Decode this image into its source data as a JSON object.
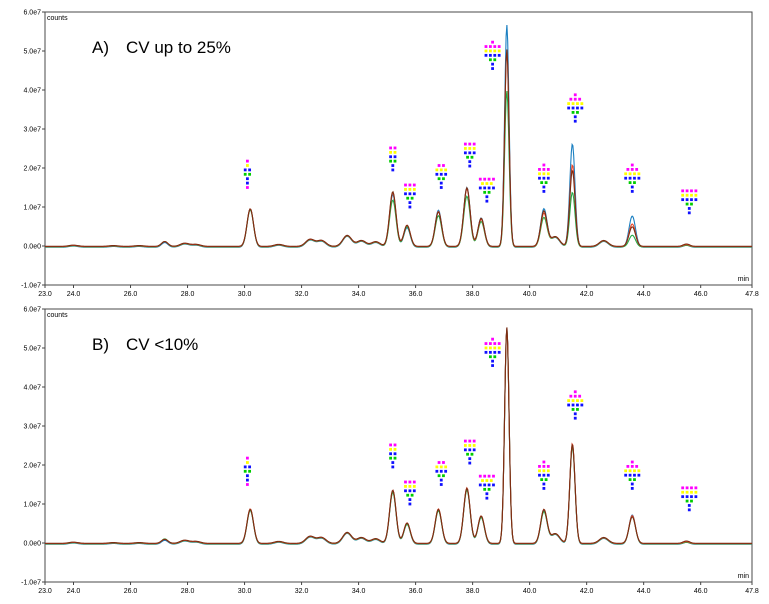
{
  "chart_data": [
    {
      "type": "line",
      "panel_label": "A)",
      "annotation": "CV up to 25%",
      "ylabel": "counts",
      "xlabel": "min",
      "xlim": [
        23.0,
        47.8
      ],
      "ylim": [
        -10000000,
        60000000
      ],
      "x_ticks": [
        "23.0",
        "24.0",
        "26.0",
        "28.0",
        "30.0",
        "32.0",
        "34.0",
        "36.0",
        "38.0",
        "40.0",
        "42.0",
        "44.0",
        "46.0",
        "47.8"
      ],
      "x_tick_values": [
        23,
        24,
        26,
        28,
        30,
        32,
        34,
        36,
        38,
        40,
        42,
        44,
        46,
        47.8
      ],
      "y_ticks": [
        "-1.0e7",
        "0.0e0",
        "1.0e7",
        "2.0e7",
        "3.0e7",
        "4.0e7",
        "5.0e7",
        "6.0e7"
      ],
      "y_tick_values": [
        -10000000,
        0,
        10000000,
        20000000,
        30000000,
        40000000,
        50000000,
        60000000
      ],
      "peak_x": [
        27.2,
        30.2,
        35.2,
        35.7,
        36.8,
        37.8,
        38.3,
        39.2,
        40.5,
        41.5,
        43.6,
        45.5
      ],
      "baseline_x": [
        24.0,
        25.4,
        26.3,
        27.9,
        28.3,
        31.2,
        32.3,
        32.7,
        33.6,
        34.1,
        34.6,
        40.9,
        42.6
      ],
      "baseline_y": [
        300000,
        200000,
        200000,
        800000,
        500000,
        500000,
        1800000,
        1500000,
        2800000,
        1500000,
        1200000,
        2500000,
        1500000
      ],
      "series": [
        {
          "color": "#1a7fc1",
          "peak_y": [
            1200000,
            9800000,
            13500000,
            5000000,
            9500000,
            15300000,
            7500000,
            57000000,
            9800000,
            26500000,
            8000000,
            500000
          ]
        },
        {
          "color": "#22a845",
          "peak_y": [
            1400000,
            9500000,
            12000000,
            5200000,
            8000000,
            13000000,
            6500000,
            40000000,
            7500000,
            14000000,
            3000000,
            400000
          ]
        },
        {
          "color": "#e8472a",
          "peak_y": [
            1300000,
            9700000,
            13800000,
            5500000,
            9000000,
            14800000,
            7000000,
            50000000,
            8500000,
            21000000,
            5800000,
            500000
          ]
        },
        {
          "color": "#7b2d12",
          "peak_y": [
            1200000,
            9600000,
            14000000,
            5400000,
            8800000,
            15000000,
            7200000,
            50500000,
            9000000,
            19500000,
            5000000,
            600000
          ]
        }
      ]
    },
    {
      "type": "line",
      "panel_label": "B)",
      "annotation": "CV <10%",
      "ylabel": "counts",
      "xlabel": "min",
      "xlim": [
        23.0,
        47.8
      ],
      "ylim": [
        -10000000,
        60000000
      ],
      "x_ticks": [
        "23.0",
        "24.0",
        "26.0",
        "28.0",
        "30.0",
        "32.0",
        "34.0",
        "36.0",
        "38.0",
        "40.0",
        "42.0",
        "44.0",
        "46.0",
        "47.8"
      ],
      "x_tick_values": [
        23,
        24,
        26,
        28,
        30,
        32,
        34,
        36,
        38,
        40,
        42,
        44,
        46,
        47.8
      ],
      "y_ticks": [
        "-1.0e7",
        "0.0e0",
        "1.0e7",
        "2.0e7",
        "3.0e7",
        "4.0e7",
        "5.0e7",
        "6.0e7"
      ],
      "y_tick_values": [
        -10000000,
        0,
        10000000,
        20000000,
        30000000,
        40000000,
        50000000,
        60000000
      ],
      "peak_x": [
        27.2,
        30.2,
        35.2,
        35.7,
        36.8,
        37.8,
        38.3,
        39.2,
        40.5,
        41.5,
        43.6,
        45.5
      ],
      "baseline_x": [
        24.0,
        25.4,
        26.3,
        27.9,
        28.3,
        31.2,
        32.3,
        32.7,
        33.6,
        34.1,
        34.6,
        40.9,
        42.6
      ],
      "baseline_y": [
        300000,
        200000,
        200000,
        800000,
        500000,
        500000,
        1800000,
        1500000,
        2800000,
        1500000,
        1200000,
        2500000,
        1500000
      ],
      "series": [
        {
          "color": "#1a7fc1",
          "peak_y": [
            1000000,
            8800000,
            13500000,
            5200000,
            8800000,
            14200000,
            7000000,
            55500000,
            8500000,
            25500000,
            7500000,
            500000
          ]
        },
        {
          "color": "#22a845",
          "peak_y": [
            1300000,
            8600000,
            13200000,
            5000000,
            8500000,
            13800000,
            6800000,
            55000000,
            8200000,
            25000000,
            7000000,
            400000
          ]
        },
        {
          "color": "#e8472a",
          "peak_y": [
            1100000,
            8900000,
            13700000,
            5300000,
            8900000,
            14300000,
            7100000,
            55200000,
            8700000,
            25700000,
            7200000,
            500000
          ]
        },
        {
          "color": "#7b2d12",
          "peak_y": [
            1000000,
            8700000,
            13600000,
            5200000,
            8700000,
            14100000,
            7000000,
            55400000,
            8600000,
            25400000,
            6800000,
            600000
          ]
        }
      ]
    }
  ],
  "glycan_icons": [
    {
      "x": 30.1,
      "y": 15000000,
      "rows": [
        [
          "#ff00ff"
        ],
        [
          "#ffff00"
        ],
        [
          "#1010ff",
          "#1010ff"
        ],
        [
          "#00cc00",
          "#00cc00"
        ],
        [
          "#1010ff"
        ],
        [
          "#1010ff"
        ],
        [
          "#ff00ff"
        ]
      ]
    },
    {
      "x": 35.2,
      "y": 19500000,
      "rows": [
        [
          "#ff00ff",
          "#ff00ff"
        ],
        [
          "#ffff00",
          "#ffff00"
        ],
        [
          "#1010ff",
          "#1010ff"
        ],
        [
          "#00cc00",
          "#00cc00"
        ],
        [
          "#1010ff"
        ],
        [
          "#1010ff"
        ]
      ]
    },
    {
      "x": 35.8,
      "y": 10000000,
      "rows": [
        [
          "#ff00ff",
          "#ff00ff",
          "#ff00ff"
        ],
        [
          "#ffff00",
          "#ffff00",
          "#ffff00"
        ],
        [
          "#1010ff",
          "#1010ff",
          "#1010ff"
        ],
        [
          "#00cc00",
          "#00cc00"
        ],
        [
          "#1010ff"
        ],
        [
          "#1010ff"
        ]
      ]
    },
    {
      "x": 36.9,
      "y": 15000000,
      "rows": [
        [
          "#ff00ff",
          "#ff00ff"
        ],
        [
          "#ffff00",
          "#ffff00",
          "#ffff00"
        ],
        [
          "#1010ff",
          "#1010ff",
          "#1010ff"
        ],
        [
          "#00cc00",
          "#00cc00"
        ],
        [
          "#1010ff"
        ],
        [
          "#1010ff"
        ]
      ]
    },
    {
      "x": 37.9,
      "y": 20500000,
      "rows": [
        [
          "#ff00ff",
          "#ff00ff",
          "#ff00ff"
        ],
        [
          "#ffff00",
          "#ffff00",
          "#ffff00"
        ],
        [
          "#1010ff",
          "#1010ff",
          "#1010ff"
        ],
        [
          "#00cc00",
          "#00cc00"
        ],
        [
          "#1010ff"
        ],
        [
          "#1010ff"
        ]
      ]
    },
    {
      "x": 38.5,
      "y": 11500000,
      "rows": [
        [
          "#ff00ff",
          "#ff00ff",
          "#ff00ff",
          "#ff00ff"
        ],
        [
          "#ffff00",
          "#ffff00",
          "#ffff00"
        ],
        [
          "#1010ff",
          "#1010ff",
          "#1010ff",
          "#1010ff"
        ],
        [
          "#00cc00",
          "#00cc00"
        ],
        [
          "#1010ff"
        ],
        [
          "#1010ff"
        ]
      ]
    },
    {
      "x": 38.7,
      "y": 45500000,
      "rows": [
        [
          "#ff00ff"
        ],
        [
          "#ff00ff",
          "#ff00ff",
          "#ff00ff",
          "#ff00ff"
        ],
        [
          "#ffff00",
          "#ffff00",
          "#ffff00",
          "#ffff00"
        ],
        [
          "#1010ff",
          "#1010ff",
          "#1010ff",
          "#1010ff"
        ],
        [
          "#00cc00",
          "#00cc00"
        ],
        [
          "#1010ff"
        ],
        [
          "#1010ff"
        ]
      ]
    },
    {
      "x": 40.5,
      "y": 14000000,
      "rows": [
        [
          "#ff00ff"
        ],
        [
          "#ff00ff",
          "#ff00ff",
          "#ff00ff"
        ],
        [
          "#ffff00",
          "#ffff00",
          "#ffff00"
        ],
        [
          "#1010ff",
          "#1010ff",
          "#1010ff"
        ],
        [
          "#00cc00",
          "#00cc00"
        ],
        [
          "#1010ff"
        ],
        [
          "#1010ff"
        ]
      ]
    },
    {
      "x": 41.6,
      "y": 32000000,
      "rows": [
        [
          "#ff00ff"
        ],
        [
          "#ff00ff",
          "#ff00ff",
          "#ff00ff"
        ],
        [
          "#ffff00",
          "#ffff00",
          "#ffff00",
          "#ffff00"
        ],
        [
          "#1010ff",
          "#1010ff",
          "#1010ff",
          "#1010ff"
        ],
        [
          "#00cc00",
          "#00cc00"
        ],
        [
          "#1010ff"
        ],
        [
          "#1010ff"
        ]
      ]
    },
    {
      "x": 43.6,
      "y": 14000000,
      "rows": [
        [
          "#ff00ff"
        ],
        [
          "#ff00ff",
          "#ff00ff",
          "#ff00ff"
        ],
        [
          "#ffff00",
          "#ffff00",
          "#ffff00",
          "#ffff00"
        ],
        [
          "#1010ff",
          "#1010ff",
          "#1010ff",
          "#1010ff"
        ],
        [
          "#00cc00",
          "#00cc00"
        ],
        [
          "#1010ff"
        ],
        [
          "#1010ff"
        ]
      ]
    },
    {
      "x": 45.6,
      "y": 8500000,
      "rows": [
        [
          "#ff00ff",
          "#ff00ff",
          "#ff00ff",
          "#ff00ff"
        ],
        [
          "#ffff00",
          "#ffff00",
          "#ffff00",
          "#ffff00"
        ],
        [
          "#1010ff",
          "#1010ff",
          "#1010ff",
          "#1010ff"
        ],
        [
          "#00cc00",
          "#00cc00"
        ],
        [
          "#1010ff"
        ],
        [
          "#1010ff"
        ]
      ]
    }
  ],
  "colors": {
    "frame": "#4a4a4a",
    "background": "#ffffff"
  }
}
